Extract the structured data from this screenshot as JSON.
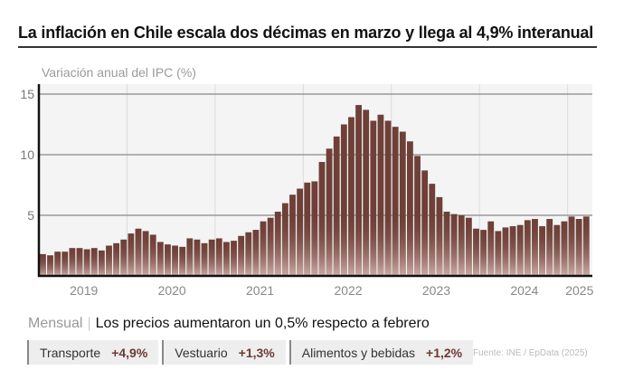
{
  "title": "La inflación en Chile escala dos décimas en marzo y llega al 4,9% interanual",
  "chart_data": {
    "type": "bar",
    "ylabel": "Variación anual del IPC (%)",
    "ylim": [
      0,
      15.5
    ],
    "yticks": [
      "5",
      "10",
      "15"
    ],
    "xticks": [
      "2019",
      "2020",
      "2021",
      "2022",
      "2023",
      "2024",
      "2025"
    ],
    "grid": true,
    "start": "2019-01",
    "end": "2025-03",
    "values": [
      1.8,
      1.7,
      2.0,
      2.0,
      2.3,
      2.3,
      2.2,
      2.3,
      2.1,
      2.5,
      2.7,
      3.0,
      3.5,
      3.9,
      3.7,
      3.4,
      2.8,
      2.6,
      2.5,
      2.4,
      3.1,
      3.0,
      2.7,
      3.0,
      3.1,
      2.8,
      2.9,
      3.3,
      3.6,
      3.8,
      4.5,
      4.8,
      5.3,
      6.0,
      6.7,
      7.2,
      7.7,
      7.8,
      9.4,
      10.5,
      11.5,
      12.5,
      13.1,
      14.1,
      13.7,
      12.8,
      13.3,
      12.8,
      12.3,
      11.9,
      11.1,
      9.9,
      8.7,
      7.6,
      6.5,
      5.3,
      5.1,
      5.0,
      4.8,
      3.9,
      3.8,
      4.5,
      3.7,
      4.0,
      4.1,
      4.2,
      4.6,
      4.7,
      4.1,
      4.7,
      4.2,
      4.5,
      4.9,
      4.7,
      4.9
    ],
    "bar_color": "#6e4038"
  },
  "monthly": {
    "label": "Mensual",
    "headline": "Los precios aumentaron un 0,5% respecto a febrero",
    "items": [
      {
        "label": "Transporte",
        "value": "+4,9%"
      },
      {
        "label": "Vestuario",
        "value": "+1,3%"
      },
      {
        "label": "Alimentos y bebidas",
        "value": "+1,2%"
      }
    ]
  },
  "source": "Fuente: INE / EpData (2025)"
}
